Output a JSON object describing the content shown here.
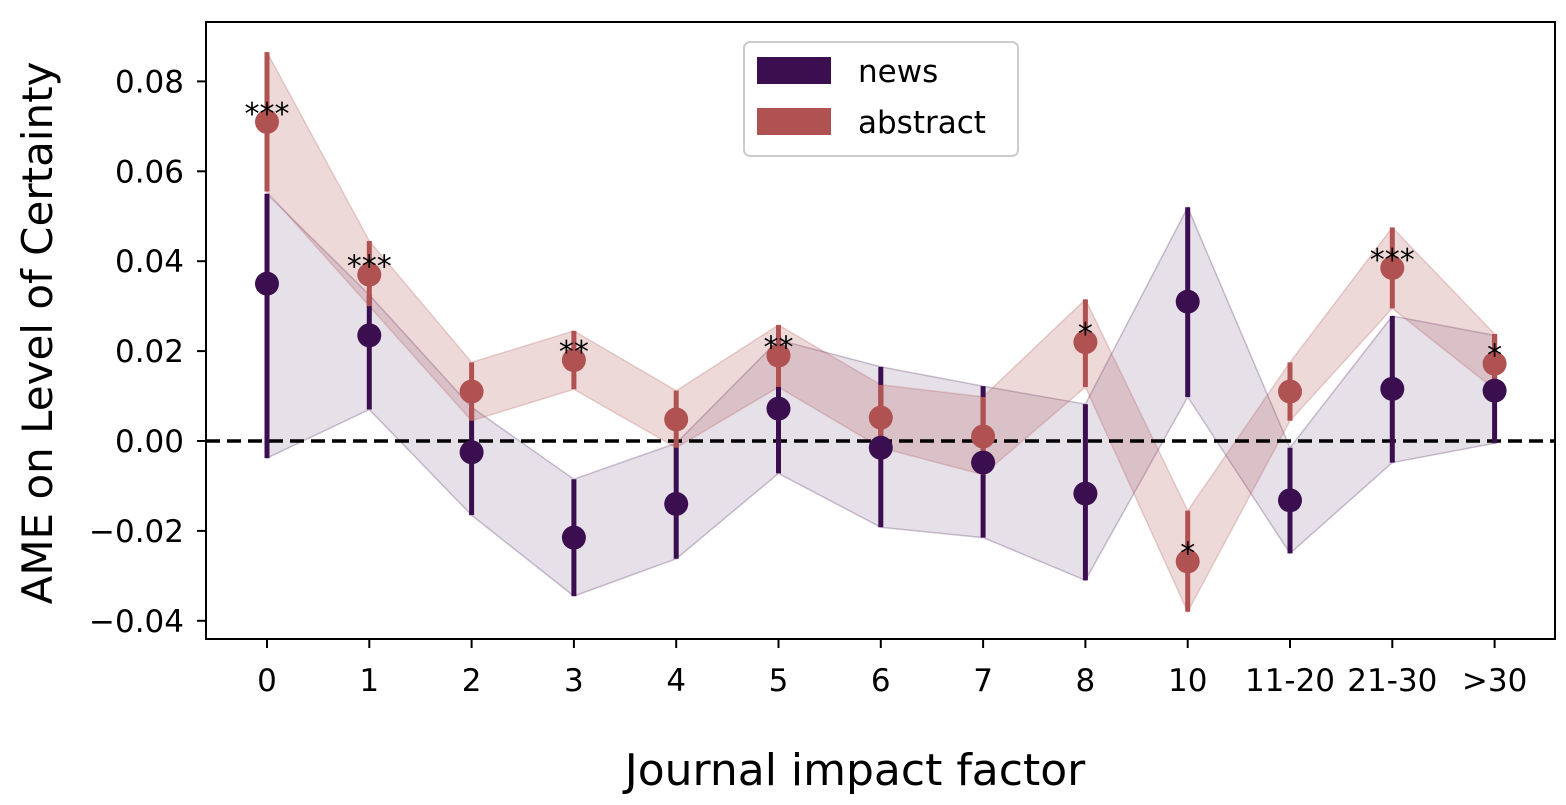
{
  "chart_data": {
    "type": "line",
    "xlabel": "Journal impact factor",
    "ylabel": "AME on Level of Certainty",
    "categories": [
      "0",
      "1",
      "2",
      "3",
      "4",
      "5",
      "6",
      "7",
      "8",
      "10",
      "11-20",
      "21-30",
      ">30"
    ],
    "ylim": [
      -0.044,
      0.093
    ],
    "yticks": [
      -0.04,
      -0.02,
      0.0,
      0.02,
      0.04,
      0.06,
      0.08
    ],
    "ytick_labels": [
      "−0.04",
      "−0.02",
      "0.00",
      "0.02",
      "0.04",
      "0.06",
      "0.08"
    ],
    "reference_line": 0.0,
    "grid": false,
    "legend_position": "top-center",
    "series": [
      {
        "name": "news",
        "color": "#3b0f4f",
        "values": [
          0.035,
          0.0235,
          -0.0025,
          -0.0215,
          -0.014,
          0.0072,
          -0.0015,
          -0.0048,
          -0.0117,
          0.031,
          -0.0132,
          0.0116,
          0.0112
        ],
        "lower": [
          -0.0038,
          0.007,
          -0.0165,
          -0.0345,
          -0.0262,
          -0.0072,
          -0.0192,
          -0.0215,
          -0.031,
          0.0098,
          -0.025,
          -0.0048,
          -0.0005
        ],
        "upper": [
          0.055,
          0.0325,
          0.0075,
          -0.0085,
          -0.0005,
          0.0225,
          0.0165,
          0.0122,
          0.0082,
          0.052,
          -0.0015,
          0.0278,
          0.0235
        ],
        "significance": [
          "",
          "",
          "",
          "",
          "",
          "",
          "",
          "",
          "",
          "",
          "",
          "",
          ""
        ]
      },
      {
        "name": "abstract",
        "color": "#b05252",
        "values": [
          0.071,
          0.037,
          0.011,
          0.018,
          0.0048,
          0.019,
          0.0052,
          0.001,
          0.022,
          -0.0268,
          0.011,
          0.0385,
          0.0172
        ],
        "lower": [
          0.0555,
          0.03,
          0.0045,
          0.0115,
          -0.0015,
          0.012,
          -0.0015,
          -0.0075,
          0.012,
          -0.038,
          0.0045,
          0.0295,
          0.0115
        ],
        "upper": [
          0.0865,
          0.0445,
          0.0175,
          0.0245,
          0.0112,
          0.0258,
          0.0125,
          0.0098,
          0.0315,
          -0.0155,
          0.0175,
          0.0475,
          0.0238
        ],
        "significance": [
          "***",
          "***",
          "",
          "**",
          "",
          "**",
          "",
          "",
          "*",
          "*",
          "",
          "***",
          "*"
        ]
      }
    ]
  }
}
